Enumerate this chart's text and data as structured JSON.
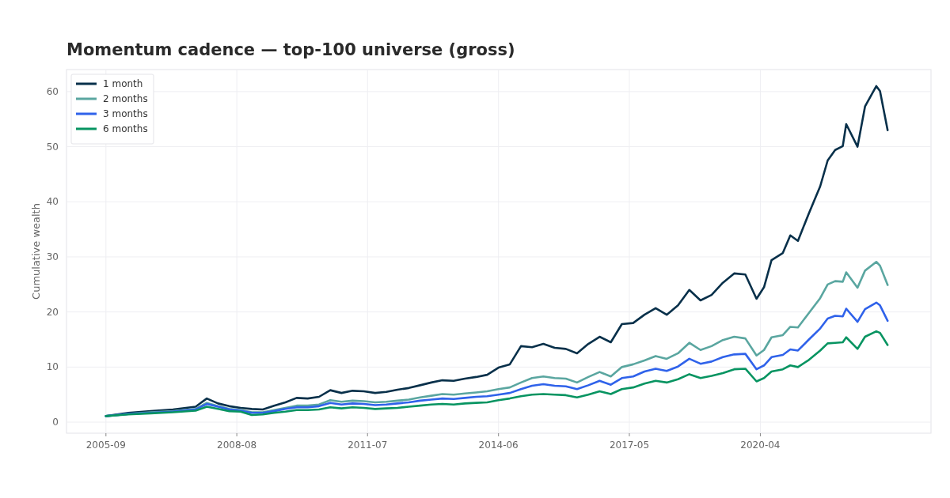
{
  "chart_data": {
    "type": "line",
    "title": "Momentum cadence — top-100 universe (gross)",
    "ylabel": "Cumulative wealth",
    "x": [
      "2005-09",
      "2006-03",
      "2006-09",
      "2007-03",
      "2007-09",
      "2007-12",
      "2008-03",
      "2008-06",
      "2008-09",
      "2008-12",
      "2009-03",
      "2009-06",
      "2009-09",
      "2009-12",
      "2010-03",
      "2010-06",
      "2010-09",
      "2010-12",
      "2011-03",
      "2011-06",
      "2011-09",
      "2011-12",
      "2012-03",
      "2012-06",
      "2012-09",
      "2012-12",
      "2013-03",
      "2013-06",
      "2013-09",
      "2013-12",
      "2014-03",
      "2014-06",
      "2014-09",
      "2014-12",
      "2015-03",
      "2015-06",
      "2015-09",
      "2015-12",
      "2016-03",
      "2016-06",
      "2016-09",
      "2016-12",
      "2017-03",
      "2017-06",
      "2017-09",
      "2017-12",
      "2018-03",
      "2018-06",
      "2018-09",
      "2018-12",
      "2019-03",
      "2019-06",
      "2019-09",
      "2019-12",
      "2020-03",
      "2020-05",
      "2020-07",
      "2020-10",
      "2020-12",
      "2021-02",
      "2021-05",
      "2021-08",
      "2021-10",
      "2021-12",
      "2022-02",
      "2022-03",
      "2022-06",
      "2022-08",
      "2022-11",
      "2022-12",
      "2023-02"
    ],
    "series": [
      {
        "name": "1 month",
        "color": "#08304a",
        "values": [
          1.1,
          1.7,
          2.0,
          2.3,
          2.8,
          4.3,
          3.4,
          2.9,
          2.6,
          2.4,
          2.3,
          3.0,
          3.6,
          4.4,
          4.3,
          4.6,
          5.8,
          5.3,
          5.7,
          5.6,
          5.3,
          5.5,
          5.9,
          6.2,
          6.7,
          7.2,
          7.6,
          7.5,
          7.9,
          8.2,
          8.6,
          9.9,
          10.5,
          13.8,
          13.6,
          14.2,
          13.5,
          13.3,
          12.5,
          14.2,
          15.5,
          14.5,
          17.8,
          18.0,
          19.5,
          20.7,
          19.5,
          21.2,
          24.0,
          22.1,
          23.1,
          25.3,
          27.0,
          26.8,
          22.4,
          24.5,
          29.4,
          30.7,
          33.9,
          32.9,
          37.9,
          42.8,
          47.5,
          49.4,
          50.1,
          54.1,
          50.0,
          57.3,
          61.0,
          60.1,
          53.0
        ]
      },
      {
        "name": "2 months",
        "color": "#5aa6a0",
        "values": [
          1.1,
          1.5,
          1.8,
          2.0,
          2.4,
          3.5,
          2.9,
          2.4,
          2.2,
          1.8,
          1.8,
          2.2,
          2.6,
          3.0,
          3.0,
          3.2,
          4.0,
          3.7,
          3.9,
          3.8,
          3.6,
          3.7,
          3.9,
          4.1,
          4.5,
          4.8,
          5.1,
          5.0,
          5.2,
          5.4,
          5.6,
          6.0,
          6.3,
          7.2,
          8.0,
          8.3,
          8.0,
          7.9,
          7.2,
          8.2,
          9.1,
          8.3,
          10.0,
          10.5,
          11.2,
          12.0,
          11.5,
          12.5,
          14.4,
          13.1,
          13.8,
          14.9,
          15.5,
          15.2,
          12.1,
          13.1,
          15.4,
          15.8,
          17.3,
          17.2,
          19.8,
          22.5,
          25.0,
          25.6,
          25.5,
          27.2,
          24.4,
          27.5,
          29.1,
          28.4,
          24.9
        ]
      },
      {
        "name": "3 months",
        "color": "#2f62ea",
        "values": [
          1.1,
          1.5,
          1.7,
          1.9,
          2.3,
          3.3,
          2.8,
          2.3,
          2.1,
          1.7,
          1.7,
          2.0,
          2.4,
          2.7,
          2.7,
          2.9,
          3.5,
          3.2,
          3.4,
          3.3,
          3.1,
          3.2,
          3.4,
          3.6,
          3.9,
          4.1,
          4.3,
          4.2,
          4.4,
          4.6,
          4.7,
          5.0,
          5.3,
          6.0,
          6.6,
          6.9,
          6.6,
          6.5,
          6.0,
          6.7,
          7.5,
          6.8,
          8.0,
          8.3,
          9.2,
          9.7,
          9.3,
          10.1,
          11.5,
          10.6,
          11.0,
          11.8,
          12.3,
          12.4,
          9.6,
          10.3,
          11.8,
          12.2,
          13.2,
          13.0,
          15.0,
          17.0,
          18.8,
          19.3,
          19.2,
          20.6,
          18.2,
          20.5,
          21.7,
          21.2,
          18.4
        ]
      },
      {
        "name": "6 months",
        "color": "#079461",
        "values": [
          1.1,
          1.4,
          1.6,
          1.8,
          2.1,
          2.8,
          2.4,
          2.0,
          1.9,
          1.3,
          1.4,
          1.7,
          1.9,
          2.2,
          2.2,
          2.3,
          2.7,
          2.5,
          2.7,
          2.6,
          2.4,
          2.5,
          2.6,
          2.8,
          3.0,
          3.2,
          3.3,
          3.2,
          3.4,
          3.5,
          3.6,
          4.0,
          4.3,
          4.7,
          5.0,
          5.1,
          5.0,
          4.9,
          4.5,
          5.0,
          5.6,
          5.1,
          6.0,
          6.3,
          7.0,
          7.5,
          7.2,
          7.8,
          8.7,
          8.0,
          8.4,
          8.9,
          9.6,
          9.7,
          7.4,
          8.0,
          9.2,
          9.6,
          10.3,
          10.0,
          11.3,
          13.0,
          14.3,
          14.4,
          14.5,
          15.4,
          13.3,
          15.5,
          16.5,
          16.2,
          14.0
        ]
      }
    ],
    "xlim": [
      "2004-10-15",
      "2024-01-20"
    ],
    "xticks": [
      "2005-09",
      "2008-08",
      "2011-07",
      "2014-06",
      "2017-05",
      "2020-04"
    ],
    "ylim": [
      -2,
      64
    ],
    "yticks": [
      0,
      10,
      20,
      30,
      40,
      50,
      60
    ],
    "grid": true,
    "legend": "top left",
    "line_style": "solid",
    "marker": "none"
  }
}
